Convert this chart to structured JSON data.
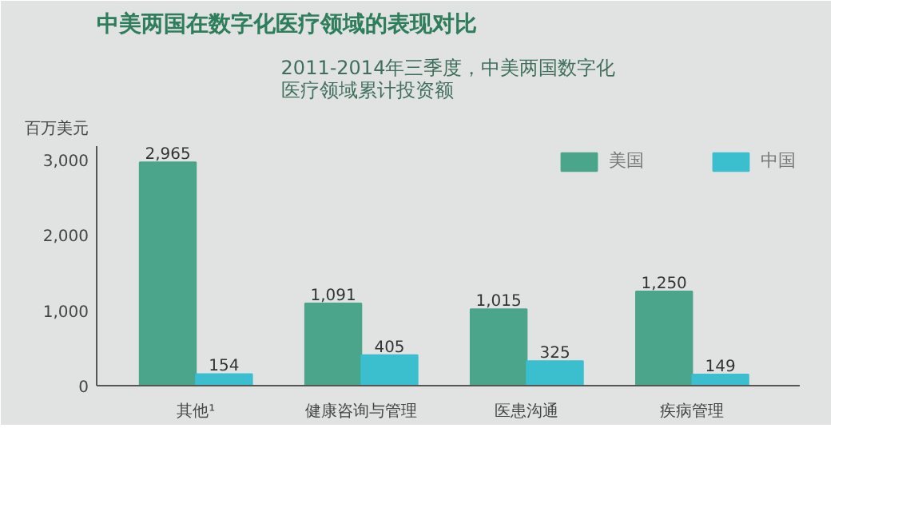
{
  "chart_data": {
    "type": "bar",
    "title": "中美两国在数字化医疗领域的表现对比",
    "subtitle": "2011-2014年三季度，中美两国数字化医疗领域累计投资额",
    "ylabel": "百万美元",
    "categories": [
      "其他¹",
      "健康咨询与管理",
      "医患沟通",
      "疾病管理"
    ],
    "series": [
      {
        "name": "美国",
        "color": "#4aa58a",
        "values": [
          2965,
          1091,
          1015,
          1250
        ],
        "value_labels": [
          "2,965",
          "1,091",
          "1,015",
          "1,250"
        ]
      },
      {
        "name": "中国",
        "color": "#3bbfcf",
        "values": [
          154,
          405,
          325,
          149
        ],
        "value_labels": [
          "154",
          "405",
          "325",
          "149"
        ]
      }
    ],
    "ylim": [
      0,
      3000
    ],
    "yticks": [
      0,
      {
        "value": 1000,
        "label": "1,000"
      },
      {
        "value": 2000,
        "label": "2,000"
      },
      {
        "value": 3000,
        "label": "3,000"
      }
    ],
    "legend": "top right"
  }
}
